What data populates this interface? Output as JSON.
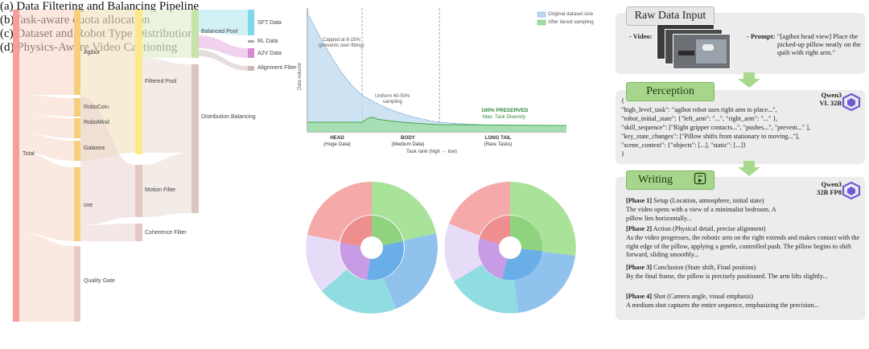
{
  "panel_a": {
    "caption": "(a) Data Filtering and Balancing Pipeline",
    "nodes": {
      "total": "Total",
      "agibot": "Agibot",
      "robocoin": "RoboCoin",
      "robomind": "RoboMind",
      "galaxea": "Galaxea",
      "oxe": "oxe",
      "quality_gate": "Quality Gate",
      "filtered_pool": "Filtered Pool",
      "motion_filter": "Motion Filter",
      "coherence_filter": "Coherence Filter",
      "balanced_pool": "Balanced Pool",
      "distribution_balancing": "Distribution Balancing",
      "sft_data": "SFT Data",
      "rl_data": "RL Data",
      "a2v_data": "A2V Data",
      "alignment_filter": "Alignment Filter"
    },
    "colors": {
      "total": "#f4a09a",
      "sources": "#f7cf7a",
      "filtered": "#fbe98a",
      "motion": "#e3c9c4",
      "balanced": "#c6e3a8",
      "sft": "#7fd9ea",
      "a2v": "#d98ad6",
      "align": "#c9b7b4"
    }
  },
  "panel_b": {
    "caption": "(b)Task-aware quota allocation",
    "legend": [
      "Original dataset size",
      "After tiered sampling"
    ],
    "ylabel": "Data volume",
    "xlabel": "Task rank  (high → low)",
    "annotations": {
      "cap": "Capped at 6-15%\n(prevents over-fitting)",
      "uniform": "Uniform 40-50%\nsampling",
      "preserved_1": "100% PRESERVED",
      "preserved_2": "Max. Task Diversity"
    },
    "regions": [
      {
        "name": "HEAD",
        "sub": "(Huge Data)"
      },
      {
        "name": "BODY",
        "sub": "(Medium Data)"
      },
      {
        "name": "LONG TAIL",
        "sub": "(Rare Tasks)"
      }
    ],
    "colors": {
      "original": "#bcd8ef",
      "sampled": "#9fdda2"
    }
  },
  "panel_c": {
    "caption": "(c) Dataset and Robot Type Distribution",
    "colors": {
      "red": "#f5a9a9",
      "green": "#a9e39a",
      "blue": "#8fc3ee",
      "teal": "#8fdde0",
      "purple": "#c89be6",
      "pink": "#f2c5d9",
      "lav": "#d7c3f0",
      "center": "#ffffff"
    }
  },
  "panel_d": {
    "caption": "(d) Physics-Aware Video Captioning",
    "raw_title": "Raw Data Input",
    "video_label": "- Video:",
    "prompt_label": "- Prompt:",
    "prompt_text": "\"[agibot head view] Place the picked-up pillow neatly on the quilt with right arm.\"",
    "perception_title": "Perception",
    "perception_model": "Qwen3\nVL 32B",
    "perception_lines": [
      "{",
      "  \"high_level_task\": \"agibot robot uses right arm to place...\",",
      "  \"robot_initial_state\": {\"left_arm\": \"...\", \"right_arm\": \"...\" },",
      "  \"skill_sequence\": [\"Right gripper contacts...\", \"pushes...\", \"prevent...\" ],",
      "  \"key_state_changes\": [\"Pillow shifts from stationary to moving...\"],",
      "  \"scene_context\": {\"objects\": [...], \"static\": [...]}",
      "}"
    ],
    "writing_title": "Writing",
    "writing_model": "Qwen3\n32B FP8",
    "phases": [
      {
        "tag": "[Phase 1]",
        "head": " Setup (Location, atmosphere, initial state)",
        "text": "The video opens with a view of a minimalist bedroom. A pillow lies horizontally..."
      },
      {
        "tag": "[Phase 2]",
        "head": " Action (Physical detail, precise alignment)",
        "text": "As the video progresses, the robotic arm on the right extends and makes contact with the right edge of the pillow, applying a gentle, controlled push. The pillow begins to shift forward, sliding smoothly..."
      },
      {
        "tag": "[Phase 3]",
        "head": " Conclusion (State shift, Final position)",
        "text": "By the final frame, the pillow is precisely positioned. The arm lifts slightly..."
      },
      {
        "tag": "[Phase 4]",
        "head": " Shot (Camera angle, visual emphasis)",
        "text": "A medium shot captures the entire sequence, emphasizing the precision..."
      }
    ],
    "colors": {
      "panel": "#ececec",
      "tag": "#a6d58b",
      "arrow": "#a8d98c",
      "qwen": "#6b5bd6"
    }
  }
}
